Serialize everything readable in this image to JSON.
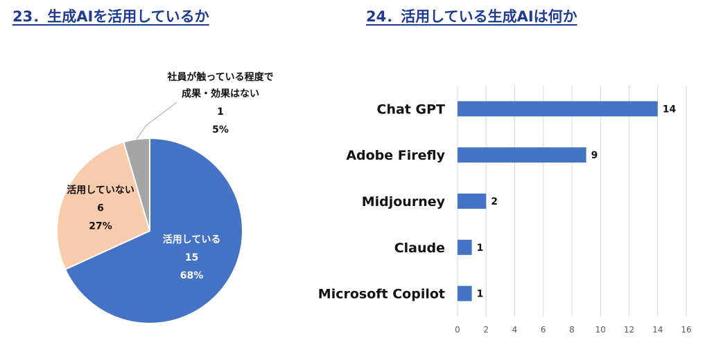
{
  "headings": {
    "left": "23．生成AIを活用しているか",
    "right": "24．活用している生成AIは何か"
  },
  "chart_data": [
    {
      "type": "pie",
      "slices": [
        {
          "label": "活用している",
          "count": "15",
          "percent": "68%",
          "value": 15,
          "color": "#4472c4"
        },
        {
          "label": "活用していない",
          "count": "6",
          "percent": "27%",
          "value": 6,
          "color": "#f8cbad"
        },
        {
          "label": "社員が触っている程度で成果・効果はない",
          "label_lines": [
            "社員が触っている程度で",
            "成果・効果はない"
          ],
          "count": "1",
          "percent": "5%",
          "value": 1,
          "color": "#a5a5a5"
        }
      ]
    },
    {
      "type": "bar",
      "orientation": "horizontal",
      "categories": [
        "Chat GPT",
        "Adobe Firefly",
        "Midjourney",
        "Claude",
        "Microsoft Copilot"
      ],
      "values": [
        14,
        9,
        2,
        1,
        1
      ],
      "xlim": [
        0,
        16
      ],
      "xticks": [
        "0",
        "2",
        "4",
        "6",
        "8",
        "10",
        "12",
        "14",
        "16"
      ],
      "grid": true,
      "bar_color": "#4472c4"
    }
  ]
}
